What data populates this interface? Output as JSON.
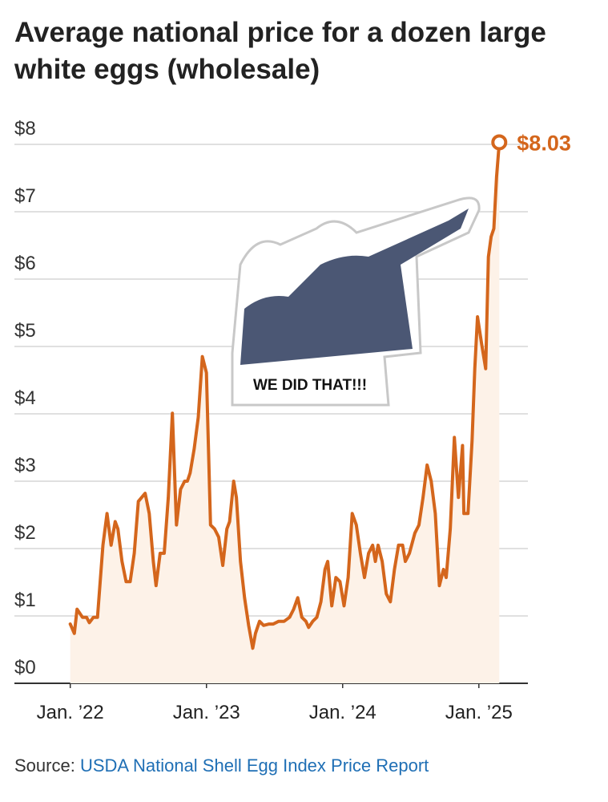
{
  "chart_data": {
    "type": "line",
    "title": "Average national price for a dozen large white eggs (wholesale)",
    "source_label": "Source:",
    "source": "USDA National Shell Egg Index Price Report",
    "annotation": "WE DID THAT!!!",
    "color": "#d4661c",
    "area_color": "#fdf2e8",
    "grid": true,
    "xlim": [
      2021.59,
      2025.36
    ],
    "xticks": [
      {
        "value": 2022,
        "label": "Jan. ’22"
      },
      {
        "value": 2023,
        "label": "Jan. ’23"
      },
      {
        "value": 2024,
        "label": "Jan. ’24"
      },
      {
        "value": 2025,
        "label": "Jan. ’25"
      }
    ],
    "ylim": [
      0,
      8.5
    ],
    "yticks": [
      {
        "value": 0,
        "label": "$0"
      },
      {
        "value": 1,
        "label": "$1"
      },
      {
        "value": 2,
        "label": "$2"
      },
      {
        "value": 3,
        "label": "$3"
      },
      {
        "value": 4,
        "label": "$4"
      },
      {
        "value": 5,
        "label": "$5"
      },
      {
        "value": 6,
        "label": "$6"
      },
      {
        "value": 7,
        "label": "$7"
      },
      {
        "value": 8,
        "label": "$8"
      }
    ],
    "x": [
      2022.0,
      2022.03,
      2022.05,
      2022.09,
      2022.12,
      2022.14,
      2022.17,
      2022.2,
      2022.24,
      2022.27,
      2022.3,
      2022.33,
      2022.35,
      2022.38,
      2022.41,
      2022.44,
      2022.47,
      2022.5,
      2022.55,
      2022.58,
      2022.61,
      2022.63,
      2022.66,
      2022.69,
      2022.72,
      2022.75,
      2022.78,
      2022.81,
      2022.84,
      2022.86,
      2022.88,
      2022.91,
      2022.94,
      2022.97,
      2023.0,
      2023.03,
      2023.06,
      2023.09,
      2023.12,
      2023.15,
      2023.17,
      2023.2,
      2023.22,
      2023.25,
      2023.28,
      2023.31,
      2023.34,
      2023.36,
      2023.39,
      2023.42,
      2023.46,
      2023.49,
      2023.53,
      2023.57,
      2023.61,
      2023.64,
      2023.67,
      2023.7,
      2023.73,
      2023.75,
      2023.78,
      2023.81,
      2023.84,
      2023.87,
      2023.89,
      2023.92,
      2023.95,
      2023.98,
      2024.01,
      2024.04,
      2024.07,
      2024.1,
      2024.13,
      2024.16,
      2024.19,
      2024.22,
      2024.24,
      2024.26,
      2024.29,
      2024.32,
      2024.35,
      2024.38,
      2024.41,
      2024.44,
      2024.46,
      2024.49,
      2024.53,
      2024.56,
      2024.59,
      2024.62,
      2024.65,
      2024.68,
      2024.71,
      2024.74,
      2024.76,
      2024.79,
      2024.82,
      2024.85,
      2024.88,
      2024.89,
      2024.92,
      2024.95,
      2024.97,
      2024.99,
      2025.02,
      2025.05,
      2025.07,
      2025.09,
      2025.11,
      2025.13,
      2025.15
    ],
    "values": [
      0.88,
      0.74,
      1.1,
      0.98,
      0.98,
      0.9,
      0.98,
      0.98,
      2.05,
      2.52,
      2.05,
      2.4,
      2.29,
      1.81,
      1.51,
      1.51,
      1.93,
      2.7,
      2.82,
      2.52,
      1.81,
      1.45,
      1.93,
      1.93,
      2.76,
      4.01,
      2.35,
      2.88,
      3.0,
      3.0,
      3.12,
      3.48,
      3.95,
      4.85,
      4.61,
      2.35,
      2.29,
      2.17,
      1.75,
      2.29,
      2.4,
      3.0,
      2.76,
      1.81,
      1.27,
      0.86,
      0.52,
      0.74,
      0.92,
      0.86,
      0.88,
      0.88,
      0.92,
      0.92,
      0.98,
      1.1,
      1.27,
      0.98,
      0.92,
      0.83,
      0.92,
      0.98,
      1.21,
      1.69,
      1.81,
      1.15,
      1.57,
      1.51,
      1.15,
      1.57,
      2.52,
      2.35,
      1.93,
      1.57,
      1.93,
      2.05,
      1.81,
      2.05,
      1.81,
      1.33,
      1.21,
      1.69,
      2.05,
      2.05,
      1.81,
      1.93,
      2.23,
      2.35,
      2.76,
      3.24,
      3.0,
      2.52,
      1.45,
      1.69,
      1.57,
      2.29,
      3.65,
      2.76,
      3.53,
      2.52,
      2.52,
      3.6,
      4.67,
      5.44,
      5.04,
      4.67,
      6.33,
      6.63,
      6.75,
      7.52,
      8.03
    ],
    "value_labels": [
      null,
      null,
      null,
      null,
      null,
      null,
      null,
      null,
      null,
      null,
      null,
      null,
      null,
      null,
      null,
      null,
      null,
      null,
      null,
      null,
      null,
      null,
      null,
      null,
      null,
      null,
      null,
      null,
      null,
      null,
      null,
      null,
      null,
      null,
      null,
      null,
      null,
      null,
      null,
      null,
      null,
      null,
      null,
      null,
      null,
      null,
      null,
      null,
      null,
      null,
      null,
      null,
      null,
      null,
      null,
      null,
      null,
      null,
      null,
      null,
      null,
      null,
      null,
      null,
      null,
      null,
      null,
      null,
      null,
      null,
      null,
      null,
      null,
      null,
      null,
      null,
      null,
      null,
      null,
      null,
      null,
      null,
      null,
      null,
      null,
      null,
      null,
      null,
      null,
      null,
      null,
      null,
      null,
      null,
      null,
      null,
      null,
      null,
      null,
      null,
      null,
      null,
      null,
      null,
      null,
      null,
      null,
      null,
      null,
      null,
      "$8.03"
    ]
  }
}
